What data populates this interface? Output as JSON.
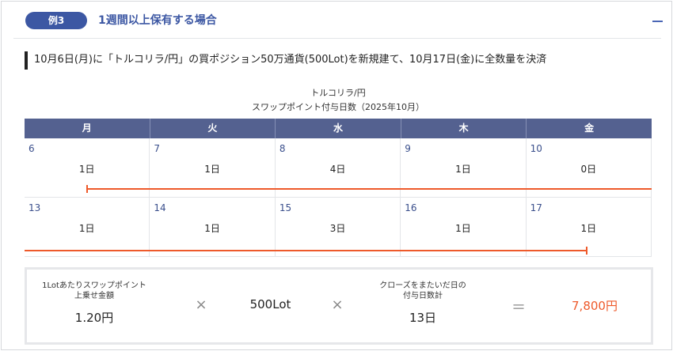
{
  "header": {
    "badge": "例3",
    "title": "1週間以上保有する場合"
  },
  "description": "10月6日(月)に「トルコリラ/円」の買ポジション50万通貨(500Lot)を新規建て、10月17日(金)に全数量を決済",
  "calendar": {
    "title_line1": "トルコリラ/円",
    "title_line2": "スワップポイント付与日数（2025年10月）",
    "weekdays": [
      "月",
      "火",
      "水",
      "木",
      "金"
    ],
    "weeks": [
      [
        {
          "date": "6",
          "count": "1日"
        },
        {
          "date": "7",
          "count": "1日"
        },
        {
          "date": "8",
          "count": "4日"
        },
        {
          "date": "9",
          "count": "1日"
        },
        {
          "date": "10",
          "count": "0日"
        }
      ],
      [
        {
          "date": "13",
          "count": "1日"
        },
        {
          "date": "14",
          "count": "1日"
        },
        {
          "date": "15",
          "count": "3日"
        },
        {
          "date": "16",
          "count": "1日"
        },
        {
          "date": "17",
          "count": "1日"
        }
      ]
    ]
  },
  "summary": {
    "swap_label_line1": "1Lotあたりスワップポイント",
    "swap_label_line2": "上乗せ金額",
    "swap_value": "1.20円",
    "multiply1": "×",
    "lot_value": "500Lot",
    "multiply2": "×",
    "days_label_line1": "クローズをまたいだ日の",
    "days_label_line2": "付与日数計",
    "days_value": "13日",
    "equals": "＝",
    "result": "7,800円"
  },
  "colors": {
    "accent": "#3c57a3",
    "calendar_header": "#546190",
    "holding_line": "#ee5a2b",
    "result": "#ee5a2b"
  },
  "icons": {
    "collapse": "minus-icon"
  }
}
